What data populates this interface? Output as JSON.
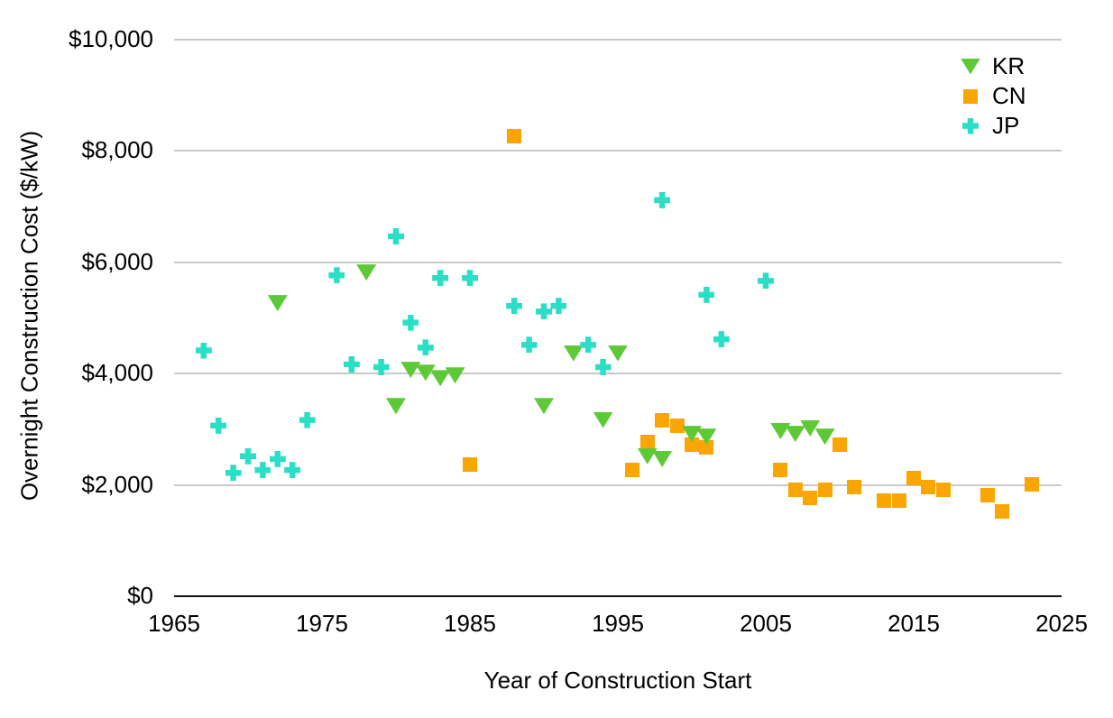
{
  "chart_data": {
    "type": "scatter",
    "title": "",
    "xlabel": "Year of Construction Start",
    "ylabel": "Overnight Construction Cost ($/kW)",
    "xlim": [
      1965,
      2025
    ],
    "ylim": [
      0,
      10000
    ],
    "x_ticks": [
      1965,
      1975,
      1985,
      1995,
      2005,
      2015,
      2025
    ],
    "y_ticks": [
      0,
      2000,
      4000,
      6000,
      8000,
      10000
    ],
    "y_tick_labels": [
      "$0",
      "$2,000",
      "$4,000",
      "$6,000",
      "$8,000",
      "$10,000"
    ],
    "grid": "horizontal gridlines at each y tick",
    "legend_position": "top-right",
    "series": [
      {
        "name": "KR",
        "marker": "triangle-down",
        "color": "#5ec936",
        "points": [
          [
            1972,
            5250
          ],
          [
            1978,
            5800
          ],
          [
            1980,
            3400
          ],
          [
            1981,
            4050
          ],
          [
            1982,
            4000
          ],
          [
            1983,
            3900
          ],
          [
            1984,
            3950
          ],
          [
            1990,
            3400
          ],
          [
            1992,
            4350
          ],
          [
            1994,
            3150
          ],
          [
            1995,
            4350
          ],
          [
            1997,
            2500
          ],
          [
            1998,
            2450
          ],
          [
            2000,
            2900
          ],
          [
            2001,
            2850
          ],
          [
            2006,
            2950
          ],
          [
            2007,
            2900
          ],
          [
            2008,
            3000
          ],
          [
            2009,
            2850
          ]
        ]
      },
      {
        "name": "CN",
        "marker": "square",
        "color": "#f9a602",
        "points": [
          [
            1985,
            2350
          ],
          [
            1988,
            8250
          ],
          [
            1996,
            2250
          ],
          [
            1997,
            2750
          ],
          [
            1998,
            3150
          ],
          [
            1999,
            3050
          ],
          [
            2000,
            2700
          ],
          [
            2001,
            2650
          ],
          [
            2006,
            2250
          ],
          [
            2007,
            1900
          ],
          [
            2008,
            1750
          ],
          [
            2009,
            1900
          ],
          [
            2010,
            2700
          ],
          [
            2011,
            1950
          ],
          [
            2013,
            1700
          ],
          [
            2014,
            1700
          ],
          [
            2015,
            2100
          ],
          [
            2016,
            1950
          ],
          [
            2017,
            1900
          ],
          [
            2020,
            1800
          ],
          [
            2021,
            1500
          ],
          [
            2023,
            2000
          ]
        ]
      },
      {
        "name": "JP",
        "marker": "plus",
        "color": "#2bdec6",
        "points": [
          [
            1967,
            4400
          ],
          [
            1968,
            3050
          ],
          [
            1969,
            2200
          ],
          [
            1970,
            2500
          ],
          [
            1971,
            2250
          ],
          [
            1972,
            2450
          ],
          [
            1973,
            2250
          ],
          [
            1974,
            3150
          ],
          [
            1976,
            5750
          ],
          [
            1977,
            4150
          ],
          [
            1979,
            4100
          ],
          [
            1980,
            6450
          ],
          [
            1981,
            4900
          ],
          [
            1982,
            4450
          ],
          [
            1983,
            5700
          ],
          [
            1985,
            5700
          ],
          [
            1988,
            5200
          ],
          [
            1989,
            4500
          ],
          [
            1990,
            5100
          ],
          [
            1991,
            5200
          ],
          [
            1993,
            4500
          ],
          [
            1994,
            4100
          ],
          [
            1998,
            7100
          ],
          [
            2001,
            5400
          ],
          [
            2002,
            4600
          ],
          [
            2005,
            5650
          ]
        ]
      }
    ]
  }
}
